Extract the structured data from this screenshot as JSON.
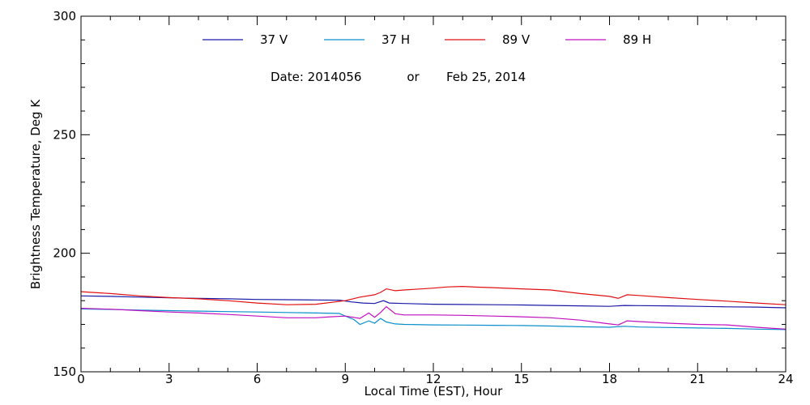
{
  "chart_data": {
    "type": "line",
    "xlabel": "Local Time (EST), Hour",
    "ylabel": "Brightness Temperature, Deg K",
    "xlim": [
      0,
      24
    ],
    "ylim": [
      150,
      300
    ],
    "x_ticks": [
      0,
      3,
      6,
      9,
      12,
      15,
      18,
      21,
      24
    ],
    "y_ticks": [
      150,
      200,
      250,
      300
    ],
    "grid": false,
    "legend_position": "top",
    "annotation": {
      "date_label": "Date: 2014056",
      "or_label": "or",
      "date_text": "Feb 25, 2014"
    },
    "series": [
      {
        "name": "37 V",
        "color": "#1a1aa8",
        "points": [
          [
            0,
            182
          ],
          [
            1,
            181.8
          ],
          [
            2,
            181.5
          ],
          [
            3,
            181.2
          ],
          [
            4,
            181
          ],
          [
            5,
            180.8
          ],
          [
            6,
            180.5
          ],
          [
            7,
            180.4
          ],
          [
            8,
            180.3
          ],
          [
            8.8,
            180.2
          ],
          [
            9.2,
            179.5
          ],
          [
            9.6,
            179
          ],
          [
            10,
            178.8
          ],
          [
            10.3,
            180
          ],
          [
            10.5,
            179
          ],
          [
            11,
            178.8
          ],
          [
            12,
            178.5
          ],
          [
            13,
            178.4
          ],
          [
            14,
            178.3
          ],
          [
            15,
            178.2
          ],
          [
            16,
            178
          ],
          [
            17,
            177.8
          ],
          [
            18,
            177.6
          ],
          [
            18.5,
            178
          ],
          [
            19,
            177.9
          ],
          [
            20,
            177.8
          ],
          [
            21,
            177.6
          ],
          [
            22,
            177.4
          ],
          [
            23,
            177.3
          ],
          [
            24,
            177
          ]
        ]
      },
      {
        "name": "37 H",
        "color": "#0a8fcc",
        "points": [
          [
            0,
            176.5
          ],
          [
            1,
            176.3
          ],
          [
            2,
            176
          ],
          [
            3,
            175.8
          ],
          [
            4,
            175.6
          ],
          [
            5,
            175.4
          ],
          [
            6,
            175.2
          ],
          [
            7,
            175
          ],
          [
            8,
            174.8
          ],
          [
            8.8,
            174.6
          ],
          [
            9,
            173.5
          ],
          [
            9.3,
            172
          ],
          [
            9.5,
            170
          ],
          [
            9.8,
            171.5
          ],
          [
            10,
            170.5
          ],
          [
            10.2,
            172.5
          ],
          [
            10.4,
            171
          ],
          [
            10.7,
            170.2
          ],
          [
            11,
            170
          ],
          [
            12,
            169.8
          ],
          [
            13,
            169.7
          ],
          [
            14,
            169.6
          ],
          [
            15,
            169.5
          ],
          [
            16,
            169.3
          ],
          [
            17,
            169
          ],
          [
            18,
            168.8
          ],
          [
            18.5,
            169.2
          ],
          [
            19,
            168.9
          ],
          [
            20,
            168.7
          ],
          [
            21,
            168.5
          ],
          [
            22,
            168.3
          ],
          [
            23,
            168
          ],
          [
            24,
            167.8
          ]
        ]
      },
      {
        "name": "89 V",
        "color": "#e01010",
        "points": [
          [
            0,
            183.8
          ],
          [
            1,
            183
          ],
          [
            2,
            182
          ],
          [
            3,
            181.3
          ],
          [
            4,
            180.8
          ],
          [
            5,
            180
          ],
          [
            6,
            179
          ],
          [
            7,
            178.3
          ],
          [
            8,
            178.5
          ],
          [
            9,
            180
          ],
          [
            9.5,
            181.5
          ],
          [
            10,
            182.5
          ],
          [
            10.2,
            183.5
          ],
          [
            10.4,
            185
          ],
          [
            10.7,
            184.2
          ],
          [
            11,
            184.5
          ],
          [
            12,
            185.3
          ],
          [
            12.5,
            185.8
          ],
          [
            13,
            186
          ],
          [
            13.5,
            185.7
          ],
          [
            14,
            185.5
          ],
          [
            15,
            185
          ],
          [
            16,
            184.5
          ],
          [
            17,
            183
          ],
          [
            18,
            181.8
          ],
          [
            18.3,
            181
          ],
          [
            18.6,
            182.5
          ],
          [
            19,
            182.2
          ],
          [
            20,
            181.3
          ],
          [
            21,
            180.5
          ],
          [
            22,
            179.8
          ],
          [
            23,
            179
          ],
          [
            24,
            178.3
          ]
        ]
      },
      {
        "name": "89 H",
        "color": "#c010c0",
        "points": [
          [
            0,
            176.8
          ],
          [
            1,
            176.4
          ],
          [
            2,
            175.8
          ],
          [
            3,
            175.2
          ],
          [
            4,
            174.8
          ],
          [
            5,
            174.2
          ],
          [
            6,
            173.5
          ],
          [
            7,
            172.8
          ],
          [
            8,
            172.8
          ],
          [
            8.5,
            173.2
          ],
          [
            9,
            173.5
          ],
          [
            9.5,
            172.5
          ],
          [
            9.8,
            174.8
          ],
          [
            10,
            173
          ],
          [
            10.2,
            175
          ],
          [
            10.4,
            177.5
          ],
          [
            10.7,
            174.5
          ],
          [
            11,
            174
          ],
          [
            12,
            174
          ],
          [
            13,
            173.8
          ],
          [
            14,
            173.5
          ],
          [
            15,
            173.2
          ],
          [
            16,
            172.8
          ],
          [
            17,
            171.8
          ],
          [
            18,
            170.2
          ],
          [
            18.3,
            169.8
          ],
          [
            18.6,
            171.5
          ],
          [
            19,
            171.2
          ],
          [
            20,
            170.5
          ],
          [
            21,
            170
          ],
          [
            22,
            169.8
          ],
          [
            23,
            168.8
          ],
          [
            24,
            168
          ]
        ]
      }
    ]
  }
}
